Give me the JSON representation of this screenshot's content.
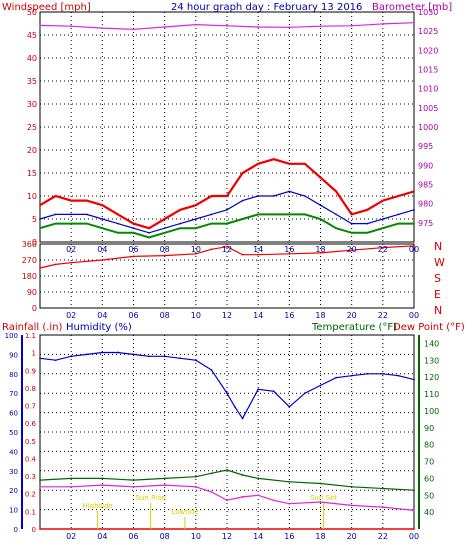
{
  "chart_data": [
    {
      "type": "line",
      "title": "24 hour graph day : February 13 2016",
      "xlabel": "",
      "x_ticks": [
        "02",
        "04",
        "06",
        "08",
        "10",
        "12",
        "14",
        "16",
        "18",
        "20",
        "22",
        "00"
      ],
      "left_axis": {
        "label": "Windspeed [mph]",
        "range": [
          0,
          50
        ],
        "ticks": [
          0,
          5,
          10,
          15,
          20,
          25,
          30,
          35,
          40,
          45,
          50
        ],
        "color": "#cc0000"
      },
      "right_axis": {
        "label": "Barometer [mb]",
        "range": [
          970,
          1030
        ],
        "ticks": [
          975,
          980,
          985,
          990,
          995,
          1000,
          1005,
          1010,
          1015,
          1020,
          1025,
          1030
        ],
        "color": "#aa00aa"
      },
      "series": [
        {
          "axis": "right",
          "color": "#dd22dd",
          "x": [
            0,
            2,
            4,
            6,
            8,
            10,
            12,
            14,
            16,
            18,
            20,
            22,
            24
          ],
          "values": [
            1026.5,
            1026.3,
            1025.8,
            1025.5,
            1026.1,
            1026.7,
            1026.4,
            1026.1,
            1026.0,
            1026.3,
            1026.4,
            1026.9,
            1027.2
          ]
        },
        {
          "axis": "left",
          "color": "#ee0000",
          "x": [
            0,
            1,
            2,
            3,
            4,
            5,
            6,
            7,
            8,
            9,
            10,
            11,
            12,
            13,
            14,
            15,
            16,
            17,
            18,
            19,
            20,
            21,
            22,
            23,
            24
          ],
          "values": [
            8,
            10,
            9,
            9,
            8,
            6,
            4,
            3,
            5,
            7,
            8,
            10,
            10,
            15,
            17,
            18,
            17,
            17,
            14,
            11,
            6,
            7,
            9,
            10,
            11
          ]
        },
        {
          "axis": "left",
          "color": "#0000cc",
          "x": [
            0,
            1,
            2,
            3,
            4,
            5,
            6,
            7,
            8,
            9,
            10,
            11,
            12,
            13,
            14,
            15,
            16,
            17,
            18,
            19,
            20,
            21,
            22,
            23,
            24
          ],
          "values": [
            5,
            6,
            6,
            6,
            5,
            4,
            3,
            2,
            3,
            4,
            5,
            6,
            7,
            9,
            10,
            10,
            11,
            10,
            8,
            6,
            4,
            4,
            5,
            6,
            7
          ]
        },
        {
          "axis": "left",
          "color": "#008800",
          "x": [
            0,
            1,
            2,
            3,
            4,
            5,
            6,
            7,
            8,
            9,
            10,
            11,
            12,
            13,
            14,
            15,
            16,
            17,
            18,
            19,
            20,
            21,
            22,
            23,
            24
          ],
          "values": [
            3,
            4,
            4,
            4,
            3,
            2,
            2,
            1,
            2,
            3,
            3,
            4,
            4,
            5,
            6,
            6,
            6,
            6,
            5,
            3,
            2,
            2,
            3,
            4,
            4
          ]
        }
      ]
    },
    {
      "type": "line",
      "left_axis": {
        "label": "",
        "range": [
          0,
          360
        ],
        "ticks": [
          0,
          90,
          180,
          270,
          360
        ],
        "color": "#cc0000"
      },
      "right_axis": {
        "label": "",
        "ticks": [
          "N",
          "W",
          "S",
          "E",
          "N"
        ],
        "color": "#cc0000"
      },
      "x_ticks": [
        "02",
        "04",
        "06",
        "08",
        "10",
        "12",
        "14",
        "16",
        "18",
        "20",
        "22",
        "00"
      ],
      "series": [
        {
          "axis": "left",
          "color": "#ee0000",
          "x": [
            0,
            1,
            2,
            4,
            6,
            8,
            10,
            11,
            12,
            13,
            14,
            16,
            18,
            20,
            22,
            24
          ],
          "values": [
            225,
            245,
            255,
            270,
            290,
            295,
            305,
            330,
            345,
            300,
            300,
            305,
            310,
            325,
            340,
            350
          ]
        }
      ]
    },
    {
      "type": "line",
      "left_axis": {
        "label": "Rainfall (.in)",
        "range": [
          0,
          1.1
        ],
        "ticks": [
          0,
          0.1,
          0.2,
          0.3,
          0.4,
          0.5,
          0.6,
          0.7,
          0.8,
          0.9,
          1,
          1.1
        ],
        "color": "#cc0000"
      },
      "left_axis_2": {
        "label": "Humidity (%)",
        "range": [
          0,
          100
        ],
        "ticks": [
          0,
          10,
          20,
          30,
          40,
          50,
          60,
          70,
          80,
          90,
          100
        ],
        "color": "#0000aa"
      },
      "right_axis": {
        "label": "Temperature (°F)",
        "range": [
          30,
          145
        ],
        "ticks": [
          40,
          50,
          60,
          70,
          80,
          90,
          100,
          110,
          120,
          130,
          140
        ],
        "color": "#006600"
      },
      "right_axis_2_label": "Dew Point (°F)",
      "x_ticks": [
        "02",
        "04",
        "06",
        "08",
        "10",
        "12",
        "14",
        "16",
        "18",
        "20",
        "22",
        "00"
      ],
      "annotations": [
        "Highside",
        "Sun Rise",
        "Lowtide",
        "Sun Set"
      ],
      "series": [
        {
          "axis": "left2",
          "color": "#0000cc",
          "x": [
            0,
            1,
            2,
            3,
            4,
            5,
            6,
            7,
            8,
            9,
            10,
            11,
            12,
            12.5,
            13,
            14,
            15,
            16,
            17,
            18,
            19,
            20,
            21,
            22,
            23,
            24
          ],
          "values": [
            88,
            87,
            89,
            90,
            91,
            91,
            90,
            89,
            89,
            88,
            87,
            82,
            70,
            63,
            57,
            72,
            71,
            63,
            70,
            74,
            78,
            79,
            80,
            80,
            79,
            77
          ]
        },
        {
          "axis": "right",
          "color": "#006600",
          "x": [
            0,
            2,
            4,
            6,
            8,
            10,
            11,
            12,
            13,
            14,
            16,
            18,
            20,
            22,
            24
          ],
          "values": [
            59,
            60,
            60,
            59,
            60,
            61,
            63,
            65,
            62,
            60,
            58,
            57,
            55,
            54,
            53
          ]
        },
        {
          "axis": "right",
          "color": "#dd22dd",
          "x": [
            0,
            2,
            4,
            6,
            8,
            10,
            11,
            12,
            13,
            14,
            15,
            16,
            18,
            20,
            22,
            24
          ],
          "values": [
            55,
            55,
            56,
            55,
            56,
            55,
            52,
            47,
            49,
            50,
            47,
            45,
            46,
            44,
            43,
            41
          ]
        },
        {
          "axis": "left",
          "color": "#ee0000",
          "x": [
            0,
            24
          ],
          "values": [
            0,
            0
          ]
        }
      ]
    }
  ]
}
